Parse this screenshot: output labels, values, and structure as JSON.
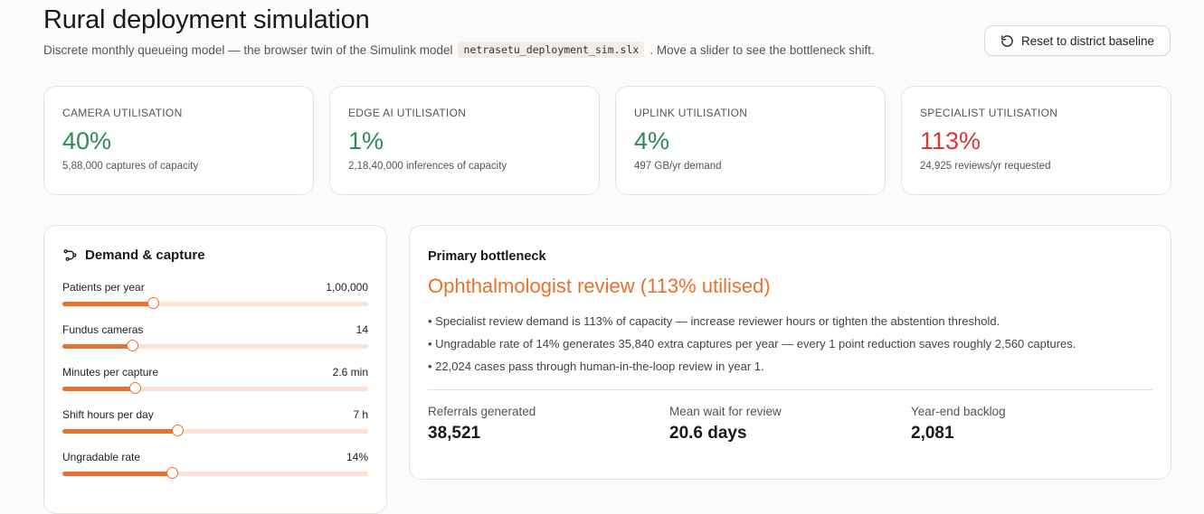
{
  "header": {
    "title": "Rural deployment simulation",
    "subtitle_before": "Discrete monthly queueing model — the browser twin of the Simulink model",
    "model_file": "netrasetu_deployment_sim.slx",
    "subtitle_after": ". Move a slider to see the bottleneck shift.",
    "reset_label": "Reset to district baseline",
    "reset_icon": "rotate-ccw-icon"
  },
  "kpis": [
    {
      "label": "CAMERA UTILISATION",
      "value": "40%",
      "sub": "5,88,000 captures of capacity",
      "color": "#2e8b57"
    },
    {
      "label": "EDGE AI UTILISATION",
      "value": "1%",
      "sub": "2,18,40,000 inferences of capacity",
      "color": "#2e8b57"
    },
    {
      "label": "UPLINK UTILISATION",
      "value": "4%",
      "sub": "497 GB/yr demand",
      "color": "#2e8b57"
    },
    {
      "label": "SPECIALIST UTILISATION",
      "value": "113%",
      "sub": "24,925 reviews/yr requested",
      "color": "#d63838"
    }
  ],
  "controls": {
    "title": "Demand & capture",
    "icon": "waypoints-icon",
    "accent": "#e8722d",
    "sliders": [
      {
        "label": "Patients per year",
        "value": "1,00,000",
        "fraction": 0.3
      },
      {
        "label": "Fundus cameras",
        "value": "14",
        "fraction": 0.23
      },
      {
        "label": "Minutes per capture",
        "value": "2.6 min",
        "fraction": 0.24
      },
      {
        "label": "Shift hours per day",
        "value": "7 h",
        "fraction": 0.38
      },
      {
        "label": "Ungradable rate",
        "value": "14%",
        "fraction": 0.36
      }
    ]
  },
  "bottleneck": {
    "label": "Primary bottleneck",
    "title": "Ophthalmologist review (113% utilised)",
    "items": [
      "• Specialist review demand is 113% of capacity — increase reviewer hours or tighten the abstention threshold.",
      "• Ungradable rate of 14% generates 35,840 extra captures per year — every 1 point reduction saves roughly 2,560 captures.",
      "• 22,024 cases pass through human-in-the-loop review in year 1."
    ],
    "stats": [
      {
        "label": "Referrals generated",
        "value": "38,521"
      },
      {
        "label": "Mean wait for review",
        "value": "20.6 days"
      },
      {
        "label": "Year-end backlog",
        "value": "2,081"
      }
    ]
  }
}
